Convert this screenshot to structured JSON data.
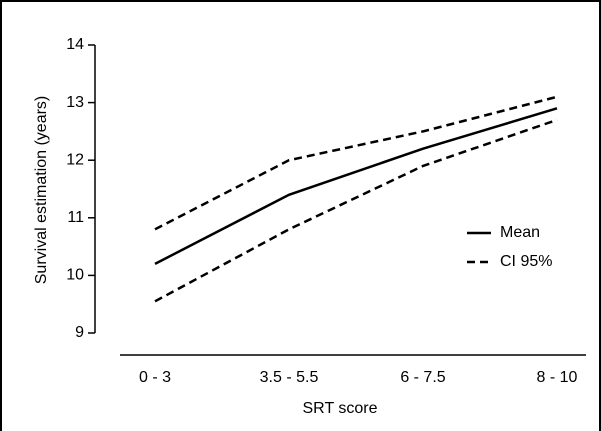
{
  "chart_data": {
    "type": "line",
    "categories": [
      "0 - 3",
      "3.5 - 5.5",
      "6 - 7.5",
      "8 - 10"
    ],
    "series": [
      {
        "name": "Mean",
        "color": "#000000",
        "dashed": false,
        "values": [
          10.2,
          11.4,
          12.2,
          12.9
        ]
      },
      {
        "name": "CI 95%",
        "color": "#000000",
        "dashed": true,
        "upper": [
          10.8,
          12.0,
          12.5,
          13.1
        ],
        "lower": [
          9.55,
          10.8,
          11.9,
          12.7
        ]
      }
    ],
    "ylim": [
      9,
      14
    ],
    "yticks": [
      9,
      10,
      11,
      12,
      13,
      14
    ],
    "xlabel": "SRT score",
    "ylabel": "Survival estimation (years)"
  }
}
